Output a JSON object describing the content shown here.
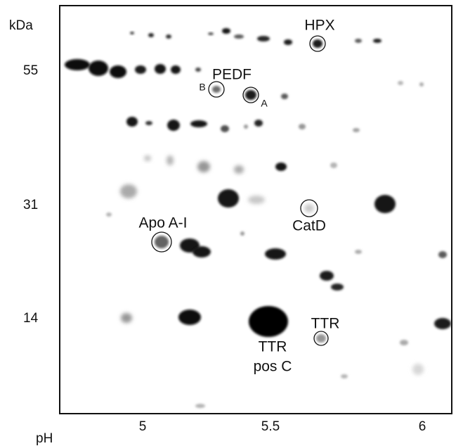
{
  "axes": {
    "y_unit": "kDa",
    "y_labels": [
      "55",
      "31",
      "14"
    ],
    "x_unit": "pH",
    "x_labels": [
      "5",
      "5.5",
      "6"
    ]
  },
  "labels": {
    "hpx": "HPX",
    "pedf": "PEDF",
    "pedf_b": "B",
    "pedf_a": "A",
    "apo": "Apo A-I",
    "catd": "CatD",
    "ttr": "TTR",
    "ttr_pos_c": [
      "TTR",
      "pos C"
    ]
  }
}
